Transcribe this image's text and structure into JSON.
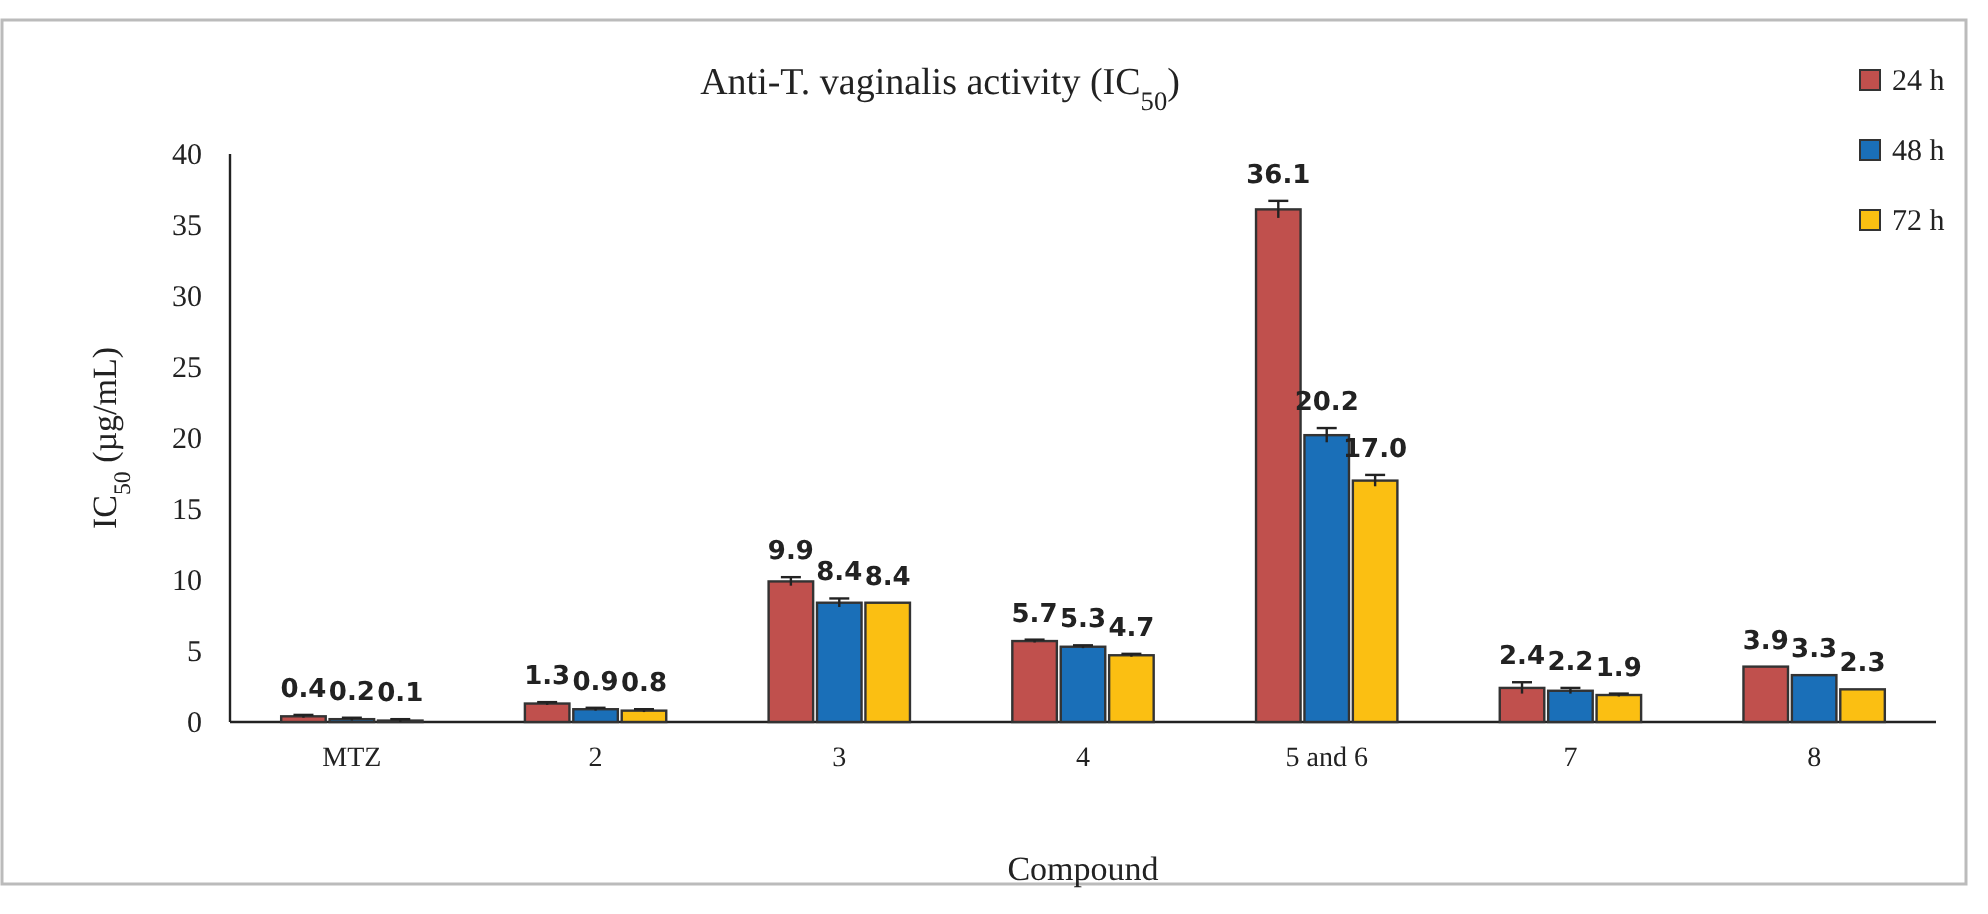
{
  "chart_data": {
    "type": "bar",
    "title": "Anti-T. vaginalis activity (IC$_{50}$)",
    "xlabel": "Compound",
    "ylabel": "IC$_{50}$ (µg/mL)",
    "categories": [
      "MTZ",
      "2",
      "3",
      "4",
      "5 and 6",
      "7",
      "8"
    ],
    "series": [
      {
        "name": "24 h",
        "color": "#c0504d",
        "values": [
          0.4,
          1.3,
          9.9,
          5.7,
          36.1,
          2.4,
          3.9
        ],
        "errors": [
          0.1,
          0.1,
          0.3,
          0.1,
          0.6,
          0.4,
          null
        ],
        "value_labels": [
          "0.4",
          "1.3",
          "9.9",
          "5.7",
          "36.1",
          "2.4",
          "3.9"
        ]
      },
      {
        "name": "48 h",
        "color": "#1a6fb8",
        "values": [
          0.2,
          0.9,
          8.4,
          5.3,
          20.2,
          2.2,
          3.3
        ],
        "errors": [
          0.1,
          0.1,
          0.3,
          0.1,
          0.5,
          0.2,
          null
        ],
        "value_labels": [
          "0.2",
          "0.9",
          "8.4",
          "5.3",
          "20.2",
          "2.2",
          "3.3"
        ]
      },
      {
        "name": "72 h",
        "color": "#fbbf12",
        "values": [
          0.1,
          0.8,
          8.4,
          4.7,
          17.0,
          1.9,
          2.3
        ],
        "errors": [
          0.1,
          0.1,
          null,
          0.1,
          0.4,
          0.1,
          null
        ],
        "value_labels": [
          "0.1",
          "0.8",
          "8.4",
          "4.7",
          "17.0",
          "1.9",
          "2.3"
        ]
      }
    ],
    "ylim": [
      0,
      40
    ],
    "yticks": [
      0,
      5,
      10,
      15,
      20,
      25,
      30,
      35,
      40
    ],
    "grid": false,
    "legend": "top right"
  }
}
